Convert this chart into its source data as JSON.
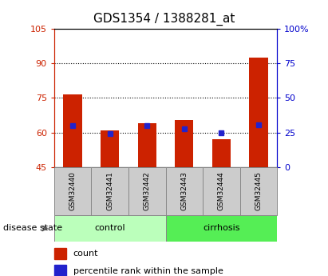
{
  "title": "GDS1354 / 1388281_at",
  "samples": [
    "GSM32440",
    "GSM32441",
    "GSM32442",
    "GSM32443",
    "GSM32444",
    "GSM32445"
  ],
  "red_values": [
    76.5,
    61.0,
    64.0,
    65.5,
    57.0,
    92.5
  ],
  "blue_values": [
    63.0,
    59.5,
    63.0,
    61.5,
    60.0,
    63.5
  ],
  "baseline": 45,
  "ylim_left": [
    45,
    105
  ],
  "ylim_right": [
    0,
    100
  ],
  "yticks_left": [
    45,
    60,
    75,
    90,
    105
  ],
  "ytick_labels_left": [
    "45",
    "60",
    "75",
    "90",
    "105"
  ],
  "yticks_right_vals": [
    0,
    25,
    50,
    75,
    100
  ],
  "ytick_labels_right": [
    "0",
    "25",
    "50",
    "75",
    "100%"
  ],
  "bar_color": "#cc2200",
  "dot_color": "#2222cc",
  "control_label": "control",
  "cirrhosis_label": "cirrhosis",
  "disease_state_label": "disease state",
  "legend_count": "count",
  "legend_percentile": "percentile rank within the sample",
  "bar_width": 0.5,
  "tick_color_left": "#cc2200",
  "tick_color_right": "#0000cc",
  "control_color": "#bbffbb",
  "cirrhosis_color": "#55ee55"
}
